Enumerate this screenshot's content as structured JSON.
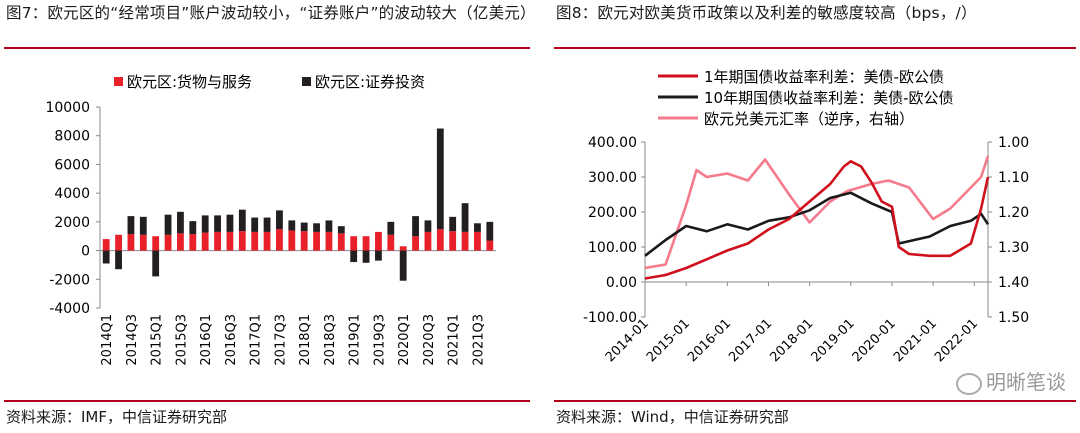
{
  "left": {
    "title": "图7：欧元区的“经常项目”账户波动较小，“证券账户”的波动较大（亿美元）",
    "source": "资料来源：IMF，中信证券研究部"
  },
  "right": {
    "title": "图8：欧元对欧美货币政策以及利差的敏感度较高（bps，/）",
    "source": "资料来源：Wind，中信证券研究部",
    "watermark": "明晰笔谈"
  },
  "chart_data": [
    {
      "type": "bar",
      "stacked": true,
      "categories": [
        "2014Q1",
        "2014Q2",
        "2014Q3",
        "2014Q4",
        "2015Q1",
        "2015Q2",
        "2015Q3",
        "2015Q4",
        "2016Q1",
        "2016Q2",
        "2016Q3",
        "2016Q4",
        "2017Q1",
        "2017Q2",
        "2017Q3",
        "2017Q4",
        "2018Q1",
        "2018Q2",
        "2018Q3",
        "2018Q4",
        "2019Q1",
        "2019Q2",
        "2019Q3",
        "2019Q4",
        "2020Q1",
        "2020Q2",
        "2020Q3",
        "2020Q4",
        "2021Q1",
        "2021Q2",
        "2021Q3",
        "2021Q4"
      ],
      "tick_labels": [
        "2014Q1",
        "2014Q3",
        "2015Q1",
        "2015Q3",
        "2016Q1",
        "2016Q3",
        "2017Q1",
        "2017Q3",
        "2018Q1",
        "2018Q3",
        "2019Q1",
        "2019Q3",
        "2020Q1",
        "2020Q3",
        "2021Q1",
        "2021Q3"
      ],
      "series": [
        {
          "name": "欧元区:货物与服务",
          "color": "#e8202a",
          "values": [
            800,
            1100,
            1150,
            1100,
            1000,
            1100,
            1200,
            1150,
            1250,
            1300,
            1300,
            1350,
            1300,
            1300,
            1500,
            1400,
            1350,
            1300,
            1300,
            1200,
            1000,
            1000,
            1300,
            1100,
            300,
            1000,
            1300,
            1500,
            1350,
            1300,
            1300,
            700
          ]
        },
        {
          "name": "欧元区:证券投资",
          "color": "#231f20",
          "values": [
            -900,
            -1300,
            1250,
            1250,
            -1800,
            1400,
            1500,
            900,
            1200,
            1150,
            1200,
            1500,
            1000,
            1000,
            1300,
            700,
            600,
            600,
            800,
            500,
            -800,
            -850,
            -700,
            900,
            -2100,
            1400,
            800,
            7000,
            1000,
            2000,
            600,
            1300
          ]
        }
      ],
      "ylim": [
        -4000,
        10000
      ],
      "yticks": [
        "10000",
        "8000",
        "6000",
        "4000",
        "2000",
        "0",
        "-2000",
        "-4000"
      ],
      "legend": "top"
    },
    {
      "type": "line",
      "series": [
        {
          "name": "1年期国债收益率利差：美债-欧公债",
          "color": "#d0101c",
          "axis": "left",
          "points": [
            [
              "2014-01",
              10
            ],
            [
              "2014-07",
              20
            ],
            [
              "2015-01",
              40
            ],
            [
              "2015-07",
              65
            ],
            [
              "2016-01",
              90
            ],
            [
              "2016-07",
              110
            ],
            [
              "2017-01",
              150
            ],
            [
              "2017-07",
              180
            ],
            [
              "2018-01",
              230
            ],
            [
              "2018-07",
              280
            ],
            [
              "2018-11",
              330
            ],
            [
              "2019-01",
              345
            ],
            [
              "2019-04",
              330
            ],
            [
              "2019-07",
              285
            ],
            [
              "2019-10",
              230
            ],
            [
              "2020-01",
              215
            ],
            [
              "2020-03",
              100
            ],
            [
              "2020-06",
              80
            ],
            [
              "2020-12",
              75
            ],
            [
              "2021-06",
              75
            ],
            [
              "2021-12",
              110
            ],
            [
              "2022-03",
              210
            ],
            [
              "2022-05",
              300
            ]
          ]
        },
        {
          "name": "10年期国债收益率利差：美债-欧公债",
          "color": "#1a1a1a",
          "axis": "left",
          "points": [
            [
              "2014-01",
              75
            ],
            [
              "2014-07",
              120
            ],
            [
              "2015-01",
              160
            ],
            [
              "2015-07",
              145
            ],
            [
              "2016-01",
              165
            ],
            [
              "2016-07",
              150
            ],
            [
              "2017-01",
              175
            ],
            [
              "2017-07",
              185
            ],
            [
              "2018-01",
              205
            ],
            [
              "2018-07",
              240
            ],
            [
              "2019-01",
              255
            ],
            [
              "2019-07",
              225
            ],
            [
              "2020-01",
              200
            ],
            [
              "2020-03",
              110
            ],
            [
              "2020-12",
              130
            ],
            [
              "2021-06",
              160
            ],
            [
              "2021-12",
              175
            ],
            [
              "2022-03",
              195
            ],
            [
              "2022-05",
              165
            ]
          ]
        },
        {
          "name": "欧元兑美元汇率（逆序，右轴）",
          "color": "#f47a8c",
          "axis": "right",
          "points": [
            [
              "2014-01",
              1.36
            ],
            [
              "2014-07",
              1.35
            ],
            [
              "2015-01",
              1.18
            ],
            [
              "2015-04",
              1.08
            ],
            [
              "2015-07",
              1.1
            ],
            [
              "2016-01",
              1.09
            ],
            [
              "2016-07",
              1.11
            ],
            [
              "2016-12",
              1.05
            ],
            [
              "2017-07",
              1.15
            ],
            [
              "2018-01",
              1.23
            ],
            [
              "2018-07",
              1.17
            ],
            [
              "2018-12",
              1.14
            ],
            [
              "2019-07",
              1.12
            ],
            [
              "2019-12",
              1.11
            ],
            [
              "2020-06",
              1.13
            ],
            [
              "2021-01",
              1.22
            ],
            [
              "2021-06",
              1.19
            ],
            [
              "2021-12",
              1.13
            ],
            [
              "2022-03",
              1.1
            ],
            [
              "2022-05",
              1.04
            ]
          ]
        }
      ],
      "x_tick_labels": [
        "2014-01",
        "2015-01",
        "2016-01",
        "2017-01",
        "2018-01",
        "2019-01",
        "2020-01",
        "2021-01",
        "2022-01"
      ],
      "ylim": [
        -100,
        400
      ],
      "y2lim": [
        1.0,
        1.5
      ],
      "y2_inverted": true,
      "yticks": [
        "400.00",
        "300.00",
        "200.00",
        "100.00",
        "0.00",
        "-100.00"
      ],
      "y2ticks": [
        "1.00",
        "1.10",
        "1.20",
        "1.30",
        "1.40",
        "1.50"
      ],
      "legend": "top-left"
    }
  ]
}
